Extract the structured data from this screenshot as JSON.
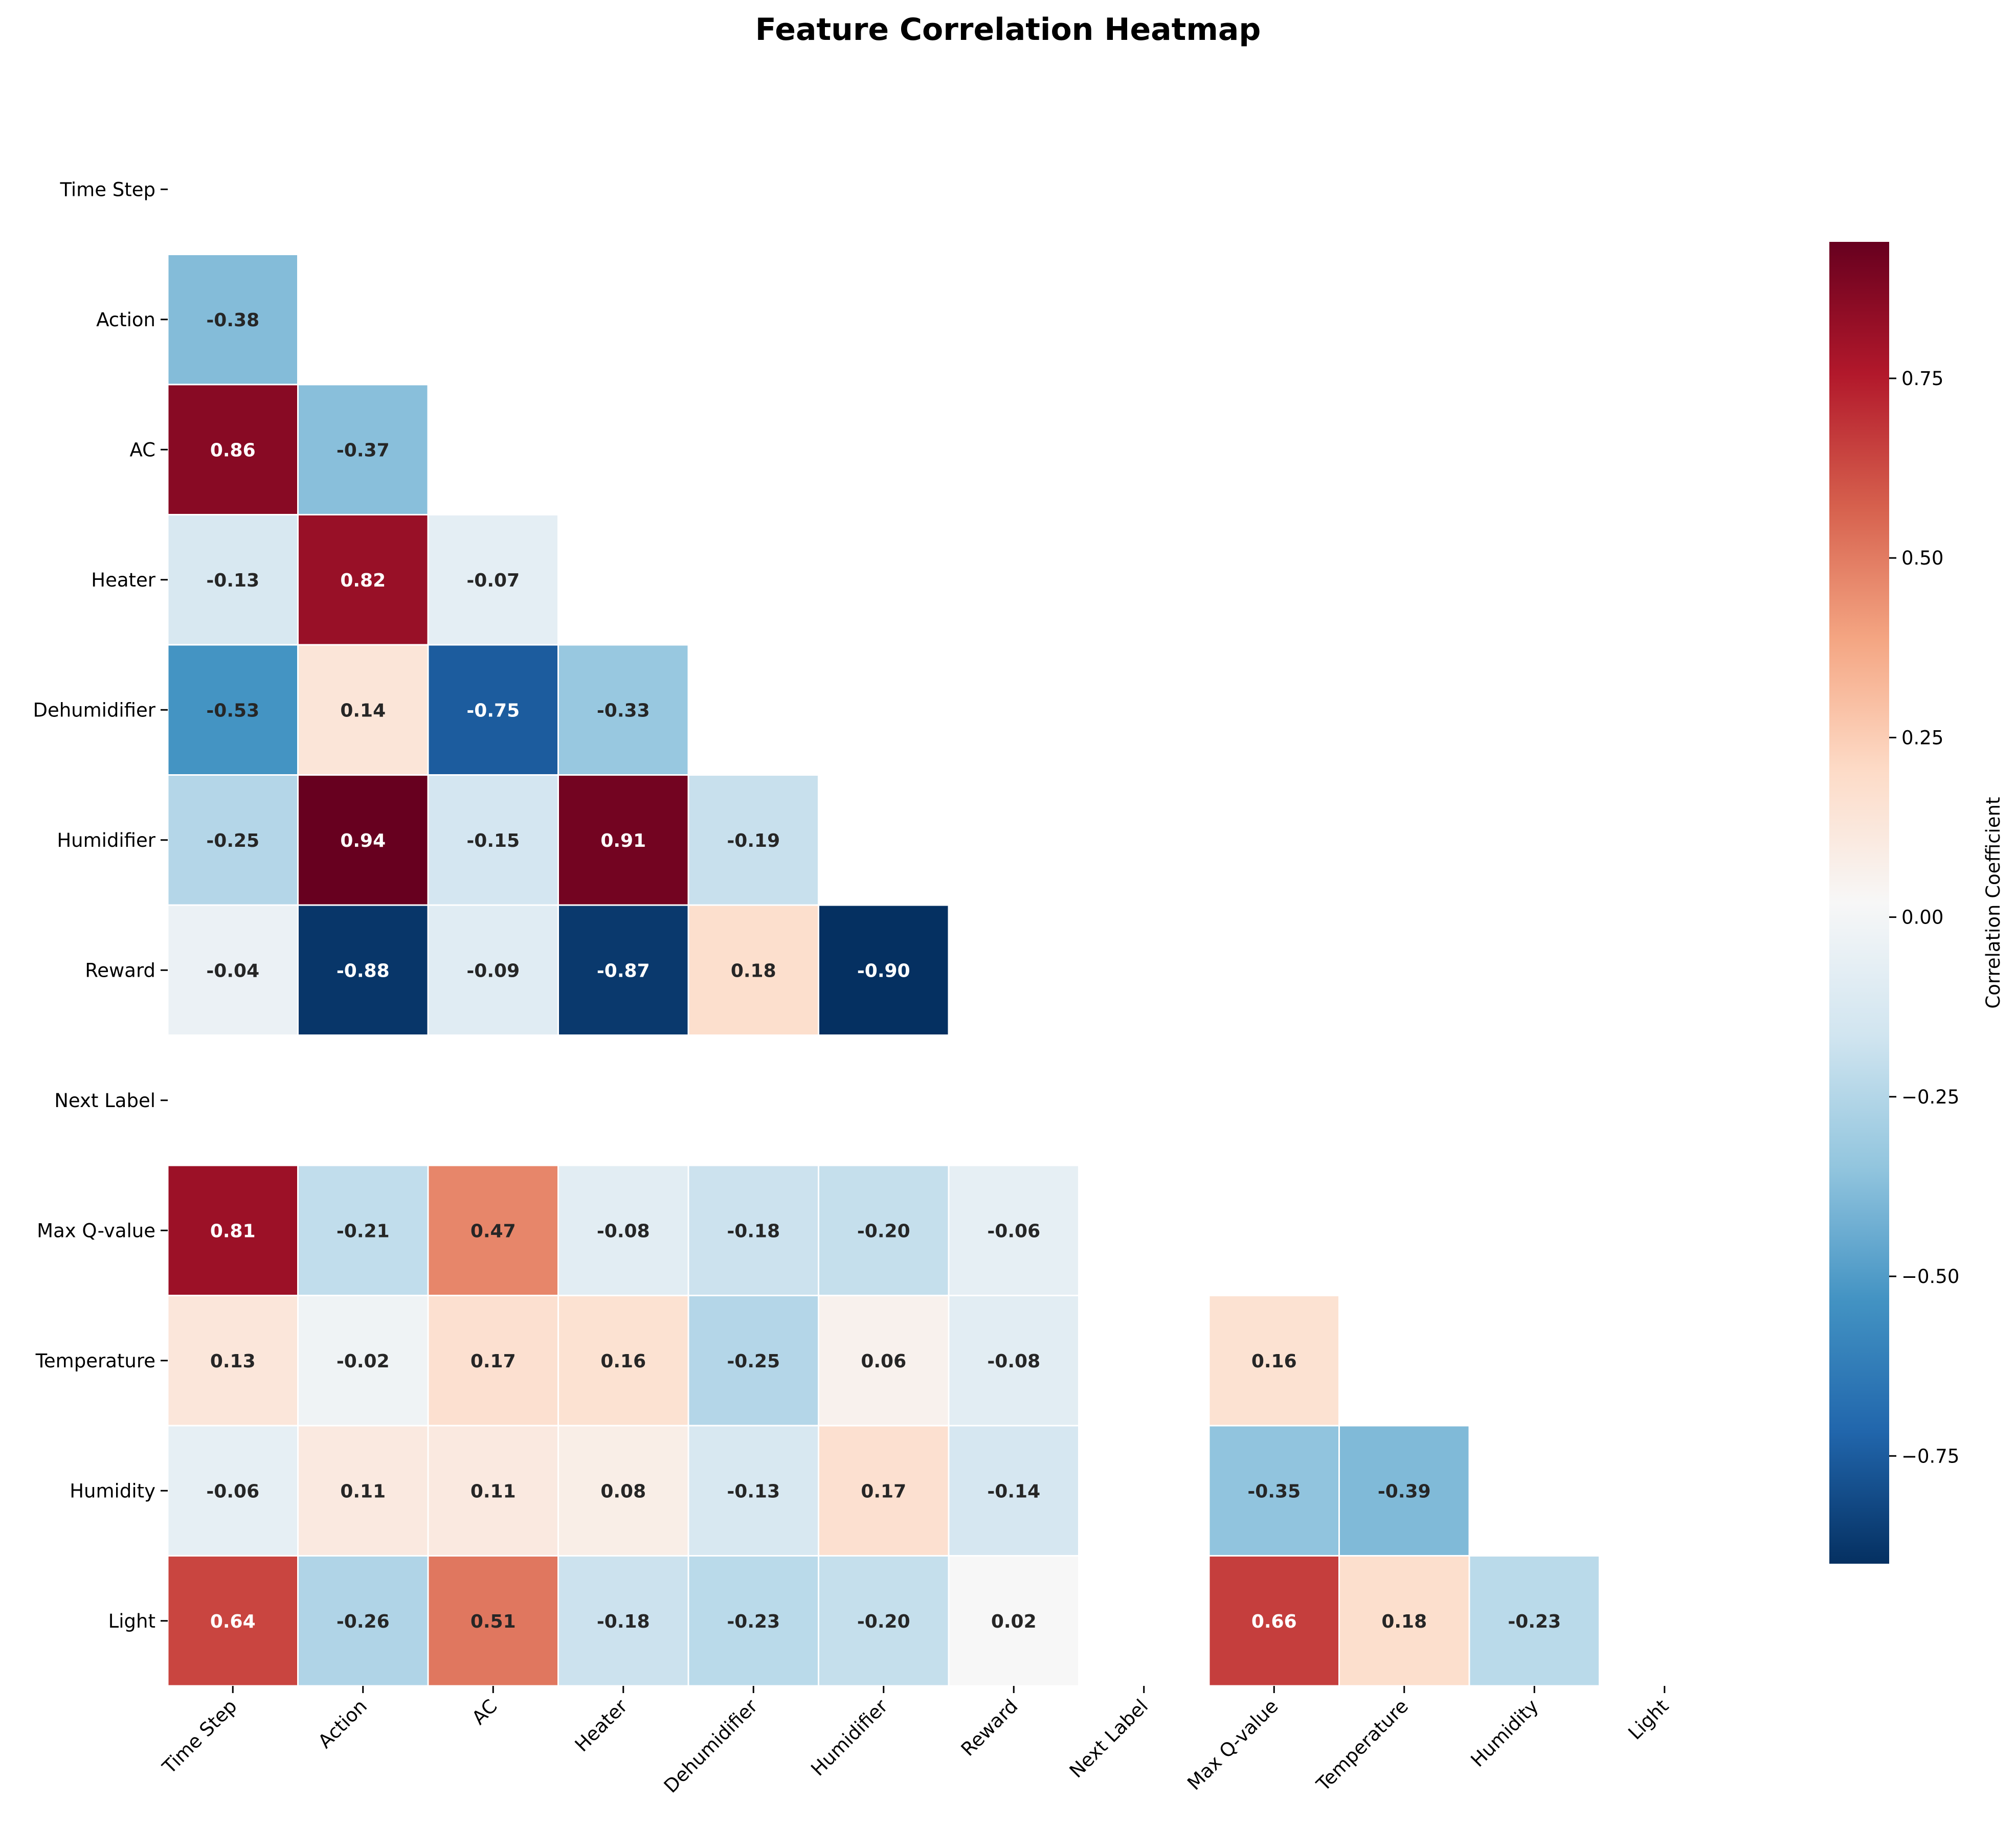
{
  "chart_data": {
    "type": "heatmap",
    "title": "Feature Correlation Heatmap",
    "labels": [
      "Time Step",
      "Action",
      "AC",
      "Heater",
      "Dehumidifier",
      "Humidifier",
      "Reward",
      "Next Label",
      "Max Q-value",
      "Temperature",
      "Humidity",
      "Light"
    ],
    "mask": "upper-triangle-including-diagonal; Next Label row/column empty",
    "matrix": [
      [
        null,
        null,
        null,
        null,
        null,
        null,
        null,
        null,
        null,
        null,
        null,
        null
      ],
      [
        -0.38,
        null,
        null,
        null,
        null,
        null,
        null,
        null,
        null,
        null,
        null,
        null
      ],
      [
        0.86,
        -0.37,
        null,
        null,
        null,
        null,
        null,
        null,
        null,
        null,
        null,
        null
      ],
      [
        -0.13,
        0.82,
        -0.07,
        null,
        null,
        null,
        null,
        null,
        null,
        null,
        null,
        null
      ],
      [
        -0.53,
        0.14,
        -0.75,
        -0.33,
        null,
        null,
        null,
        null,
        null,
        null,
        null,
        null
      ],
      [
        -0.25,
        0.94,
        -0.15,
        0.91,
        -0.19,
        null,
        null,
        null,
        null,
        null,
        null,
        null
      ],
      [
        -0.04,
        -0.88,
        -0.09,
        -0.87,
        0.18,
        -0.9,
        null,
        null,
        null,
        null,
        null,
        null
      ],
      [
        null,
        null,
        null,
        null,
        null,
        null,
        null,
        null,
        null,
        null,
        null,
        null
      ],
      [
        0.81,
        -0.21,
        0.47,
        -0.08,
        -0.18,
        -0.2,
        -0.06,
        null,
        null,
        null,
        null,
        null
      ],
      [
        0.13,
        -0.02,
        0.17,
        0.16,
        -0.25,
        0.06,
        -0.08,
        null,
        0.16,
        null,
        null,
        null
      ],
      [
        -0.06,
        0.11,
        0.11,
        0.08,
        -0.13,
        0.17,
        -0.14,
        null,
        -0.35,
        -0.39,
        null,
        null
      ],
      [
        0.64,
        -0.26,
        0.51,
        -0.18,
        -0.23,
        -0.2,
        0.02,
        null,
        0.66,
        0.18,
        -0.23,
        null
      ]
    ],
    "colormap": "RdBu_r",
    "vmin": -0.9,
    "vmax": 0.94,
    "colorbar": {
      "label": "Correlation Coefficient",
      "ticks": [
        "−0.75",
        "−0.50",
        "−0.25",
        "0.00",
        "0.25",
        "0.50",
        "0.75"
      ],
      "tick_values": [
        -0.75,
        -0.5,
        -0.25,
        0.0,
        0.25,
        0.5,
        0.75
      ]
    },
    "legend_placement": "right"
  }
}
